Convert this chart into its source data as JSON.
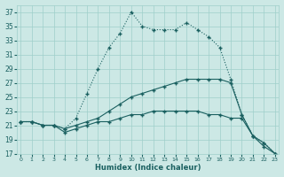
{
  "xlabel": "Humidex (Indice chaleur)",
  "background_color": "#cce8e5",
  "grid_color": "#9fcfca",
  "line_color": "#1a6060",
  "xlim": [
    0,
    23
  ],
  "ylim": [
    17,
    38
  ],
  "yticks": [
    17,
    19,
    21,
    23,
    25,
    27,
    29,
    31,
    33,
    35,
    37
  ],
  "xticks": [
    0,
    1,
    2,
    3,
    4,
    5,
    6,
    7,
    8,
    9,
    10,
    11,
    12,
    13,
    14,
    15,
    16,
    17,
    18,
    19,
    20,
    21,
    22,
    23
  ],
  "line1_x": [
    0,
    1,
    2,
    3,
    4,
    5,
    6,
    7,
    8,
    9,
    10,
    11,
    12,
    13,
    14,
    15,
    16,
    17,
    18,
    19,
    20,
    21,
    22,
    23
  ],
  "line1_y": [
    21.5,
    21.5,
    21.0,
    21.0,
    20.5,
    22.0,
    25.5,
    29.0,
    32.0,
    34.0,
    37.0,
    35.0,
    34.5,
    34.5,
    34.5,
    35.5,
    34.5,
    33.5,
    32.0,
    27.5,
    22.5,
    19.5,
    18.5,
    17.0
  ],
  "line2_x": [
    0,
    1,
    2,
    3,
    4,
    5,
    6,
    7,
    8,
    9,
    10,
    11,
    12,
    13,
    14,
    15,
    16,
    17,
    18,
    19,
    20,
    21,
    22,
    23
  ],
  "line2_y": [
    21.5,
    21.5,
    21.0,
    21.0,
    20.5,
    21.0,
    21.5,
    22.0,
    23.0,
    24.0,
    25.0,
    25.5,
    26.0,
    26.5,
    27.0,
    27.5,
    27.5,
    27.5,
    27.5,
    27.0,
    22.5,
    19.5,
    18.5,
    17.0
  ],
  "line3_x": [
    0,
    1,
    2,
    3,
    4,
    5,
    6,
    7,
    8,
    9,
    10,
    11,
    12,
    13,
    14,
    15,
    16,
    17,
    18,
    19,
    20,
    21,
    22,
    23
  ],
  "line3_y": [
    21.5,
    21.5,
    21.0,
    21.0,
    20.0,
    20.5,
    21.0,
    21.5,
    21.5,
    22.0,
    22.5,
    22.5,
    23.0,
    23.0,
    23.0,
    23.0,
    23.0,
    22.5,
    22.5,
    22.0,
    22.0,
    19.5,
    18.0,
    17.0
  ]
}
